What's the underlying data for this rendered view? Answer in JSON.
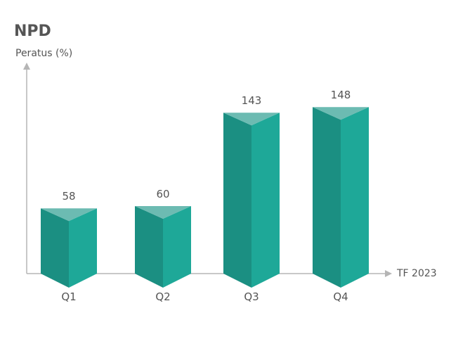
{
  "chart_data": {
    "type": "bar",
    "title": "NPD",
    "ylabel": "Peratus (%)",
    "xlabel": "TF 2023",
    "categories": [
      "Q1",
      "Q2",
      "Q3",
      "Q4"
    ],
    "values": [
      58,
      60,
      143,
      148
    ],
    "ylim": [
      0,
      160
    ],
    "grid": false,
    "legend": "none"
  },
  "colors": {
    "bar_front": "#1ea898",
    "bar_left": "#1b8f82",
    "bar_top": "#6cbbb2",
    "axis": "#b5b5b5",
    "label": "#555555"
  }
}
